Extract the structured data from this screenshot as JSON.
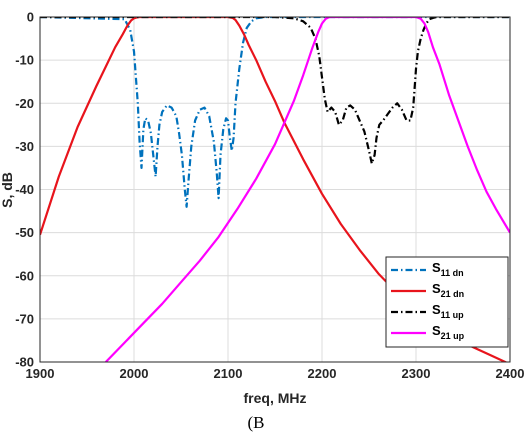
{
  "chart_data": {
    "type": "line",
    "title": "",
    "xlabel": "freq, MHz",
    "ylabel": "S, dB",
    "xlim": [
      1900,
      2400
    ],
    "ylim": [
      -80,
      0
    ],
    "xticks": [
      1900,
      2000,
      2100,
      2200,
      2300,
      2400
    ],
    "yticks": [
      0,
      -10,
      -20,
      -30,
      -40,
      -50,
      -60,
      -70,
      -80
    ],
    "grid": true,
    "legend_position": "center-right",
    "caption": "(B",
    "series": [
      {
        "base": "S",
        "sub": "11 dn",
        "color": "#0072BD",
        "dash": "dashdot",
        "x": [
          1900,
          1990,
          1996,
          2000,
          2004,
          2006,
          2008,
          2010,
          2012,
          2015,
          2018,
          2021,
          2023,
          2025,
          2027,
          2030,
          2035,
          2040,
          2045,
          2048,
          2051,
          2054,
          2056,
          2058,
          2061,
          2065,
          2070,
          2075,
          2080,
          2085,
          2088,
          2090,
          2092,
          2095,
          2098,
          2100,
          2102,
          2104,
          2106,
          2108,
          2112,
          2116,
          2120,
          2125,
          2130,
          2140,
          2200,
          2300,
          2400
        ],
        "y": [
          0,
          -0.5,
          -3,
          -8,
          -20,
          -29,
          -35,
          -26,
          -23.5,
          -24,
          -27,
          -33,
          -37,
          -30,
          -25,
          -22,
          -20.5,
          -21,
          -23,
          -27,
          -32,
          -40,
          -44,
          -38,
          -30,
          -24,
          -21.5,
          -21,
          -23,
          -29,
          -36,
          -42,
          -32,
          -26,
          -23.5,
          -24,
          -28,
          -31,
          -28,
          -20,
          -12,
          -6,
          -2.5,
          -1,
          -0.3,
          0,
          0,
          0,
          0
        ]
      },
      {
        "base": "S",
        "sub": "21 dn",
        "color": "#E8141C",
        "dash": "solid",
        "x": [
          1900,
          1920,
          1940,
          1960,
          1970,
          1980,
          1988,
          1993,
          1997,
          2000,
          2003,
          2006,
          2010,
          2100,
          2105,
          2108,
          2112,
          2117,
          2122,
          2130,
          2140,
          2150,
          2160,
          2180,
          2200,
          2220,
          2240,
          2260,
          2280,
          2300,
          2320,
          2340,
          2360,
          2380,
          2400
        ],
        "y": [
          -50.5,
          -37,
          -25.5,
          -16,
          -11.5,
          -7,
          -4,
          -2,
          -0.8,
          -0.3,
          -0.1,
          0,
          0,
          0,
          -0.2,
          -0.7,
          -2,
          -4,
          -6.5,
          -10,
          -15,
          -19.5,
          -24.5,
          -33,
          -41,
          -48,
          -54,
          -59.5,
          -64,
          -67.5,
          -71,
          -74,
          -76.5,
          -78.5,
          -80.5
        ]
      },
      {
        "base": "S",
        "sub": "11 up",
        "color": "#000000",
        "dash": "dashdot",
        "x": [
          1900,
          2100,
          2150,
          2170,
          2180,
          2188,
          2193,
          2197,
          2200,
          2203,
          2206,
          2210,
          2214,
          2218,
          2222,
          2226,
          2230,
          2235,
          2240,
          2245,
          2250,
          2253,
          2256,
          2258,
          2261,
          2265,
          2270,
          2275,
          2280,
          2285,
          2290,
          2294,
          2297,
          2300,
          2302,
          2305,
          2308,
          2311,
          2314,
          2318,
          2322,
          2330,
          2340,
          2400
        ],
        "y": [
          0,
          0,
          0,
          -0.3,
          -1,
          -2.5,
          -5,
          -9,
          -14,
          -19,
          -22,
          -21,
          -22,
          -25,
          -24,
          -21,
          -20.5,
          -21.5,
          -24,
          -26.5,
          -31,
          -34,
          -32,
          -28,
          -25,
          -24,
          -22.5,
          -21,
          -20,
          -21.5,
          -24,
          -24,
          -21,
          -12,
          -8,
          -5,
          -3,
          -1.5,
          -0.5,
          -0.2,
          0,
          0,
          0,
          0
        ]
      },
      {
        "base": "S",
        "sub": "21 up",
        "color": "#FF00FF",
        "dash": "solid",
        "x": [
          1970,
          1990,
          2010,
          2030,
          2050,
          2070,
          2090,
          2110,
          2130,
          2150,
          2170,
          2180,
          2190,
          2196,
          2200,
          2204,
          2208,
          2300,
          2305,
          2309,
          2313,
          2318,
          2325,
          2335,
          2345,
          2355,
          2365,
          2375,
          2385,
          2400
        ],
        "y": [
          -80,
          -75.5,
          -71,
          -66.5,
          -61.5,
          -56.5,
          -51,
          -44.5,
          -37.5,
          -29.5,
          -19.5,
          -13.5,
          -7,
          -3.5,
          -1.5,
          -0.4,
          0,
          0,
          -0.4,
          -1.5,
          -3.5,
          -7,
          -11,
          -18,
          -24,
          -30,
          -35.5,
          -40.5,
          -44.5,
          -50
        ]
      }
    ]
  }
}
